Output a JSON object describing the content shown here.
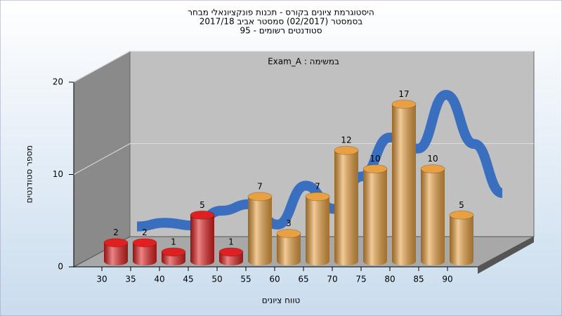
{
  "chart_data": {
    "type": "bar3d",
    "title": [
      "היסטוגרמת ציונים בקורס - תכנות פונקציונאלי מבחר",
      "בסמסטר  (02/2017)  סמסטר אביב 2017/18",
      "סטודנטים רשומים - 95"
    ],
    "annotation": "Exam_A : במשימה",
    "y_label": "מספר סטודנטים",
    "x_label": "טווח ציונים",
    "categories": [
      "30",
      "35",
      "40",
      "45",
      "50",
      "55",
      "60",
      "65",
      "70",
      "75",
      "80",
      "85",
      "90"
    ],
    "values": [
      2,
      2,
      1,
      5,
      1,
      7,
      3,
      7,
      12,
      10,
      17,
      10,
      5
    ],
    "colors": [
      "#e02020",
      "#e02020",
      "#e02020",
      "#e02020",
      "#e02020",
      "#e8a040",
      "#e8a040",
      "#e8a040",
      "#e8a040",
      "#e8a040",
      "#e8a040",
      "#e8a040",
      "#e8a040"
    ],
    "trend": {
      "color": "#3a6fc0",
      "values": [
        1.1,
        1.5,
        1.2,
        2.8,
        3.5,
        1.3,
        5.5,
        3.0,
        6.5,
        10.7,
        9.5,
        15.3,
        10.0,
        4.7
      ]
    },
    "ylim": [
      0,
      20
    ],
    "yticks": [
      0,
      10,
      20
    ],
    "grid": true
  }
}
